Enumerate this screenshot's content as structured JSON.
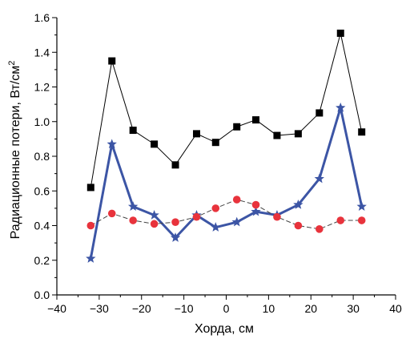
{
  "chart_data": {
    "type": "line",
    "title": "",
    "xlabel": "Хорда, см",
    "ylabel_main": "Радиационные потери, Вт/см",
    "ylabel_sup": "2",
    "xlim": [
      -40,
      40
    ],
    "ylim": [
      0.0,
      1.6
    ],
    "x_ticks": [
      -40,
      -30,
      -20,
      -10,
      0,
      10,
      20,
      30,
      40
    ],
    "x_tick_labels": [
      "−40",
      "−30",
      "−20",
      "−10",
      "0",
      "10",
      "20",
      "30",
      "40"
    ],
    "y_ticks": [
      0.0,
      0.2,
      0.4,
      0.6,
      0.8,
      1.0,
      1.2,
      1.4,
      1.6
    ],
    "y_tick_labels": [
      "0.0",
      "0.2",
      "0.4",
      "0.6",
      "0.8",
      "1.0",
      "1.2",
      "1.4",
      "1.6"
    ],
    "grid": false,
    "x": [
      -32,
      -27,
      -22,
      -17,
      -12,
      -7,
      -2.5,
      2.5,
      7,
      12,
      17,
      22,
      27,
      32
    ],
    "series": [
      {
        "marker": "square",
        "color": "#000000",
        "line_width": 1,
        "values": [
          0.62,
          1.35,
          0.95,
          0.87,
          0.75,
          0.93,
          0.88,
          0.97,
          1.01,
          0.92,
          0.93,
          1.05,
          1.51,
          0.94
        ]
      },
      {
        "marker": "star",
        "color": "#3c55a5",
        "line_width": 3,
        "values": [
          0.21,
          0.87,
          0.51,
          0.46,
          0.33,
          0.46,
          0.39,
          0.42,
          0.48,
          0.46,
          0.52,
          0.67,
          1.08,
          0.51
        ]
      },
      {
        "marker": "circle",
        "color": "#e8333c",
        "line_color": "#444444",
        "line_width": 1,
        "dashed": true,
        "values": [
          0.4,
          0.47,
          0.43,
          0.41,
          0.42,
          0.45,
          0.5,
          0.55,
          0.52,
          0.45,
          0.4,
          0.38,
          0.43,
          0.43
        ]
      }
    ]
  }
}
